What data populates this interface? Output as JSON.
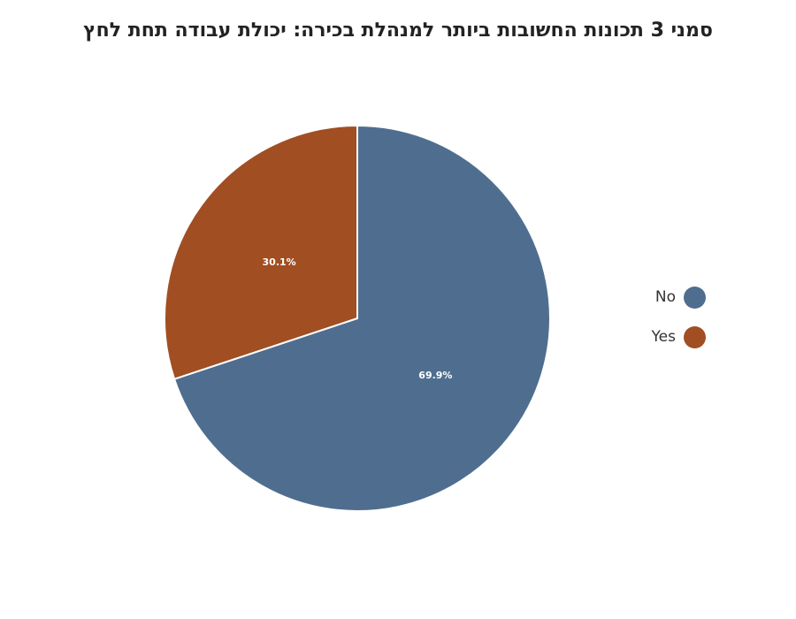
{
  "chart_data": {
    "type": "pie",
    "title": "סמני 3 תכונות החשובות ביותר למנהלת בכירה: יכולת עבודה תחת לחץ",
    "categories": [
      "No",
      "Yes"
    ],
    "values": [
      69.9,
      30.1
    ],
    "labels": [
      "69.9%",
      "30.1%"
    ],
    "colors": [
      "#4f6e8f",
      "#a14e22"
    ],
    "legend_position": "right"
  }
}
